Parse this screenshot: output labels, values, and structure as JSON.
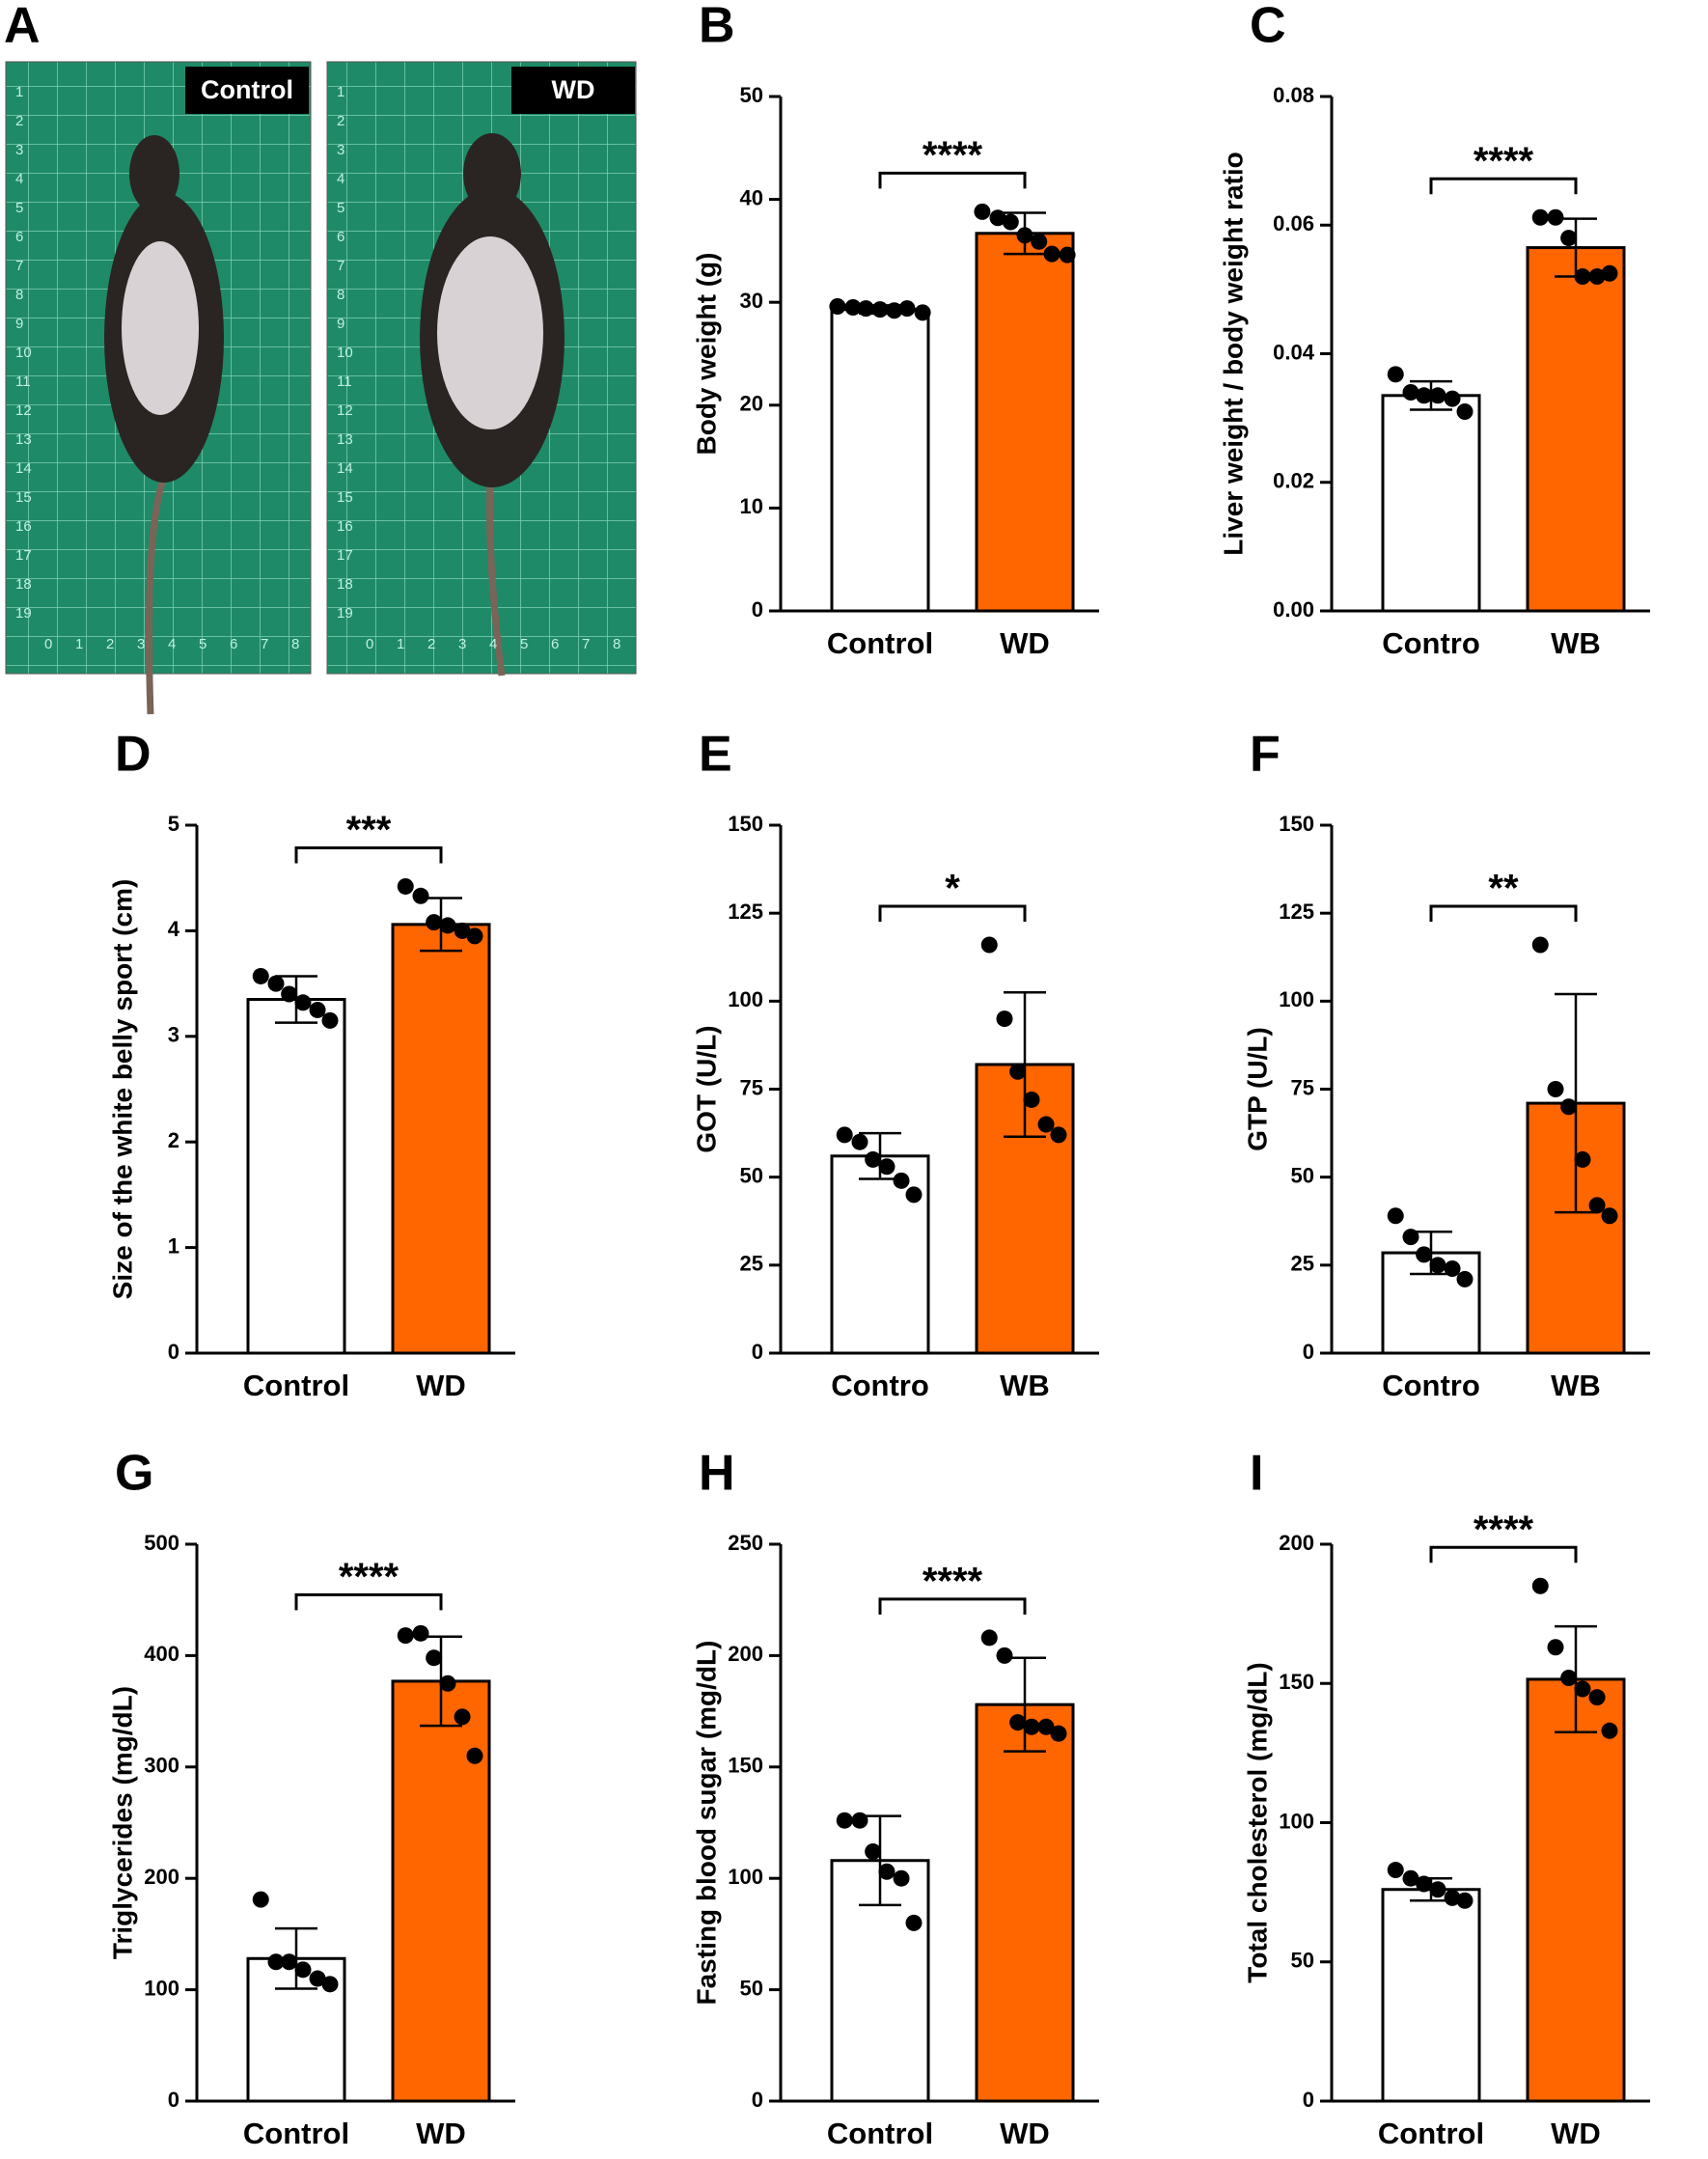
{
  "photo_panel": {
    "panel": "A",
    "tags": [
      "Control",
      "WD"
    ],
    "ruler_rows": [
      1,
      2,
      3,
      4,
      5,
      6,
      7,
      8,
      9,
      10,
      11,
      12,
      13,
      14,
      15,
      16,
      17,
      18,
      19
    ],
    "ruler_cols": [
      0,
      1,
      2,
      3,
      4,
      5,
      6,
      7,
      8
    ]
  },
  "chart_data": [
    {
      "type": "bar",
      "panel": "B",
      "ylabel": "Body weight (g)",
      "categories": [
        "Control",
        "WD"
      ],
      "colors": [
        "#ffffff",
        "#ff6600"
      ],
      "values": [
        29.3,
        36.7
      ],
      "errors": [
        0.4,
        2.0
      ],
      "points": [
        [
          29.6,
          29.5,
          29.4,
          29.3,
          29.2,
          29.4,
          29.0
        ],
        [
          38.8,
          38.2,
          37.8,
          36.5,
          35.9,
          34.7,
          34.6
        ]
      ],
      "ylim": [
        0,
        50
      ],
      "yticks": [
        0,
        10,
        20,
        30,
        40,
        50
      ],
      "significance": "****"
    },
    {
      "type": "bar",
      "panel": "C",
      "ylabel": "Liver weight / body weight ratio",
      "categories": [
        "Contro",
        "WB"
      ],
      "colors": [
        "#ffffff",
        "#ff6600"
      ],
      "values": [
        0.0335,
        0.0565
      ],
      "errors": [
        0.0022,
        0.0045
      ],
      "points": [
        [
          0.0368,
          0.034,
          0.0335,
          0.0335,
          0.033,
          0.031
        ],
        [
          0.0612,
          0.0612,
          0.058,
          0.052,
          0.052,
          0.0525
        ]
      ],
      "ylim": [
        0,
        0.08
      ],
      "yticks": [
        {
          "value": 0,
          "label": "0.00"
        },
        {
          "value": 0.02,
          "label": "0.02"
        },
        {
          "value": 0.04,
          "label": "0.04"
        },
        {
          "value": 0.06,
          "label": "0.06"
        },
        {
          "value": 0.08,
          "label": "0.08"
        }
      ],
      "significance": "****"
    },
    {
      "type": "bar",
      "panel": "D",
      "ylabel": "Size of the white belly sport (cm)",
      "categories": [
        "Control",
        "WD"
      ],
      "colors": [
        "#ffffff",
        "#ff6600"
      ],
      "values": [
        3.35,
        4.06
      ],
      "errors": [
        0.22,
        0.25
      ],
      "points": [
        [
          3.57,
          3.5,
          3.4,
          3.32,
          3.25,
          3.15
        ],
        [
          4.42,
          4.33,
          4.08,
          4.05,
          4.0,
          3.95
        ]
      ],
      "ylim": [
        0,
        5
      ],
      "yticks": [
        0,
        1,
        2,
        3,
        4,
        5
      ],
      "significance": "***"
    },
    {
      "type": "bar",
      "panel": "E",
      "ylabel": "GOT (U/L)",
      "categories": [
        "Contro",
        "WB"
      ],
      "colors": [
        "#ffffff",
        "#ff6600"
      ],
      "values": [
        56,
        82
      ],
      "errors": [
        6.5,
        20.5
      ],
      "points": [
        [
          62,
          60,
          55,
          53,
          49,
          45
        ],
        [
          116,
          95,
          80,
          72,
          65,
          62
        ]
      ],
      "ylim": [
        0,
        150
      ],
      "yticks": [
        0,
        25,
        50,
        75,
        100,
        125,
        150
      ],
      "significance": "*"
    },
    {
      "type": "bar",
      "panel": "F",
      "ylabel": "GTP (U/L)",
      "categories": [
        "Contro",
        "WB"
      ],
      "colors": [
        "#ffffff",
        "#ff6600"
      ],
      "values": [
        28.5,
        71
      ],
      "errors": [
        6,
        31
      ],
      "points": [
        [
          39,
          33,
          28,
          25,
          24,
          21
        ],
        [
          116,
          75,
          70,
          55,
          42,
          39
        ]
      ],
      "ylim": [
        0,
        150
      ],
      "yticks": [
        0,
        25,
        50,
        75,
        100,
        125,
        150
      ],
      "significance": "**"
    },
    {
      "type": "bar",
      "panel": "G",
      "ylabel": "Triglycerides (mg/dL)",
      "categories": [
        "Control",
        "WD"
      ],
      "colors": [
        "#ffffff",
        "#ff6600"
      ],
      "values": [
        128,
        377
      ],
      "errors": [
        27,
        40
      ],
      "points": [
        [
          181,
          125,
          125,
          118,
          110,
          105
        ],
        [
          418,
          420,
          398,
          375,
          345,
          310
        ]
      ],
      "ylim": [
        0,
        500
      ],
      "yticks": [
        0,
        100,
        200,
        300,
        400,
        500
      ],
      "significance": "****"
    },
    {
      "type": "bar",
      "panel": "H",
      "ylabel": "Fasting blood sugar (mg/dL)",
      "categories": [
        "Control",
        "WD"
      ],
      "colors": [
        "#ffffff",
        "#ff6600"
      ],
      "values": [
        108,
        178
      ],
      "errors": [
        20,
        21
      ],
      "points": [
        [
          126,
          126,
          112,
          103,
          100,
          80
        ],
        [
          208,
          200,
          170,
          168,
          168,
          165
        ]
      ],
      "ylim": [
        0,
        250
      ],
      "yticks": [
        0,
        50,
        100,
        150,
        200,
        250
      ],
      "significance": "****"
    },
    {
      "type": "bar",
      "panel": "I",
      "ylabel": "Total cholesterol (mg/dL)",
      "categories": [
        "Control",
        "WD"
      ],
      "colors": [
        "#ffffff",
        "#ff6600"
      ],
      "values": [
        76,
        151.5
      ],
      "errors": [
        4,
        19
      ],
      "points": [
        [
          83,
          80,
          78,
          76,
          73,
          72
        ],
        [
          185,
          163,
          152,
          148,
          145,
          133
        ]
      ],
      "ylim": [
        0,
        200
      ],
      "yticks": [
        0,
        50,
        100,
        150,
        200
      ],
      "significance": "****"
    }
  ]
}
